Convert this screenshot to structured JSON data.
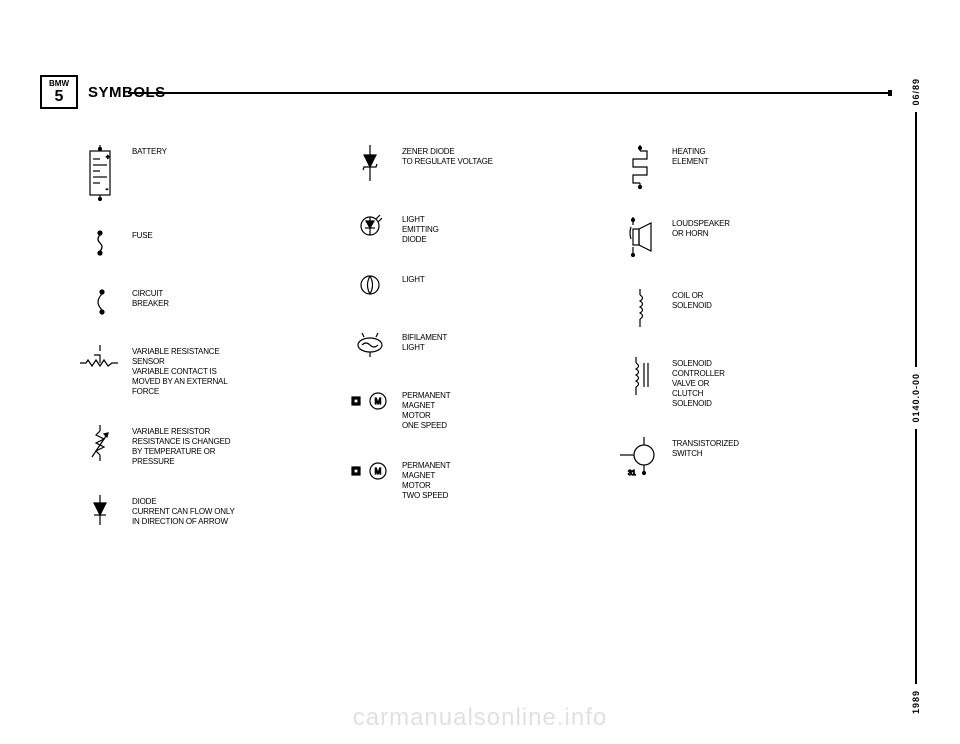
{
  "header": {
    "brand_top": "BMW",
    "brand_bottom": "5",
    "title": "SYMBOLS"
  },
  "right": {
    "top": "06/89",
    "mid": "0140.0-00",
    "bot": "1989"
  },
  "watermark": "carmanualsonline.info",
  "col1": [
    {
      "label": "BATTERY"
    },
    {
      "label": "FUSE"
    },
    {
      "label": "CIRCUIT\nBREAKER"
    },
    {
      "label": "VARIABLE RESISTANCE\nSENSOR\nVARIABLE CONTACT IS\nMOVED BY AN EXTERNAL\nFORCE"
    },
    {
      "label": "VARIABLE RESISTOR\nRESISTANCE IS CHANGED\nBY TEMPERATURE OR\nPRESSURE"
    },
    {
      "label": "DIODE\nCURRENT CAN FLOW ONLY\nIN DIRECTION OF ARROW"
    }
  ],
  "col2": [
    {
      "label": "ZENER DIODE\nTO REGULATE VOLTAGE"
    },
    {
      "label": "LIGHT\nEMITTING\nDIODE"
    },
    {
      "label": "LIGHT"
    },
    {
      "label": "BIFILAMENT\nLIGHT"
    },
    {
      "label": "PERMANENT\nMAGNET\nMOTOR\nONE SPEED"
    },
    {
      "label": "PERMANENT\nMAGNET\nMOTOR\nTWO SPEED"
    }
  ],
  "col3": [
    {
      "label": "HEATING\nELEMENT"
    },
    {
      "label": "LOUDSPEAKER\nOR HORN"
    },
    {
      "label": "COIL OR\nSOLENOID"
    },
    {
      "label": "SOLENOID\nCONTROLLER\nVALVE OR\nCLUTCH\nSOLENOID"
    },
    {
      "label": "TRANSISTORIZED\nSWITCH",
      "sub": "31"
    }
  ]
}
